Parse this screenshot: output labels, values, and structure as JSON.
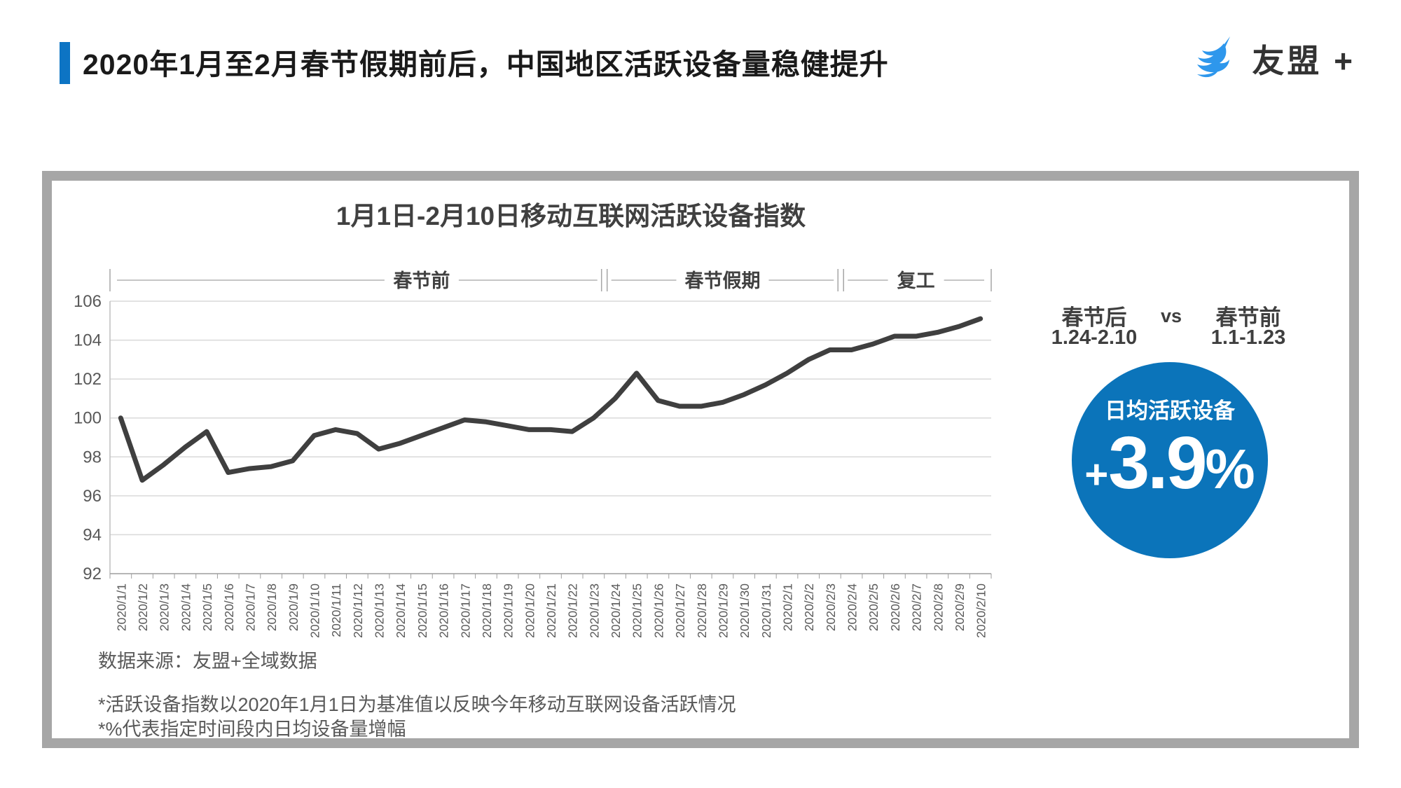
{
  "header": {
    "title": "2020年1月至2月春节假期前后，中国地区活跃设备量稳健提升",
    "accent_color": "#0d74c4"
  },
  "logo": {
    "brand": "友盟 +",
    "icon": "swallow-bird-icon",
    "icon_color": "#2e97ec"
  },
  "chart_data": {
    "type": "line",
    "title": "1月1日-2月10日移动互联网活跃设备指数",
    "x": [
      "2020/1/1",
      "2020/1/2",
      "2020/1/3",
      "2020/1/4",
      "2020/1/5",
      "2020/1/6",
      "2020/1/7",
      "2020/1/8",
      "2020/1/9",
      "2020/1/10",
      "2020/1/11",
      "2020/1/12",
      "2020/1/13",
      "2020/1/14",
      "2020/1/15",
      "2020/1/16",
      "2020/1/17",
      "2020/1/18",
      "2020/1/19",
      "2020/1/20",
      "2020/1/21",
      "2020/1/22",
      "2020/1/23",
      "2020/1/24",
      "2020/1/25",
      "2020/1/26",
      "2020/1/27",
      "2020/1/28",
      "2020/1/29",
      "2020/1/30",
      "2020/1/31",
      "2020/2/1",
      "2020/2/2",
      "2020/2/3",
      "2020/2/4",
      "2020/2/5",
      "2020/2/6",
      "2020/2/7",
      "2020/2/8",
      "2020/2/9",
      "2020/2/10"
    ],
    "values": [
      100,
      96.8,
      97.6,
      98.5,
      99.3,
      97.2,
      97.4,
      97.5,
      97.8,
      99.1,
      99.4,
      99.2,
      98.4,
      98.7,
      99.1,
      99.5,
      99.9,
      99.8,
      99.6,
      99.4,
      99.4,
      99.3,
      100,
      101,
      102.3,
      100.9,
      100.6,
      100.6,
      100.8,
      101.2,
      101.7,
      102.3,
      103,
      103.5,
      103.5,
      103.8,
      104.2,
      104.2,
      104.4,
      104.7,
      105.1
    ],
    "ylim": [
      92,
      106
    ],
    "y_ticks": [
      92,
      94,
      96,
      98,
      100,
      102,
      104,
      106
    ],
    "grid": "horizontal",
    "legend": "none",
    "line_color": "#3f3f3f",
    "periods": [
      {
        "label": "春节前",
        "start_index": 0,
        "end_index": 22,
        "center_index": 14
      },
      {
        "label": "春节假期",
        "start_index": 23,
        "end_index": 33,
        "center_index": 28
      },
      {
        "label": "复工",
        "start_index": 34,
        "end_index": 40,
        "center_index": 37
      }
    ]
  },
  "side_panel": {
    "after_label": "春节后",
    "after_range": "1.24-2.10",
    "vs_label": "vs",
    "before_label": "春节前",
    "before_range": "1.1-1.23",
    "badge_title": "日均活跃设备",
    "badge_plus": "+",
    "badge_number": "3.9",
    "badge_percent": "%",
    "badge_color": "#0b74ba"
  },
  "footer": {
    "source": "数据来源：友盟+全域数据",
    "note1": "*活跃设备指数以2020年1月1日为基准值以反映今年移动互联网设备活跃情况",
    "note2": "*%代表指定时间段内日均设备量增幅"
  }
}
